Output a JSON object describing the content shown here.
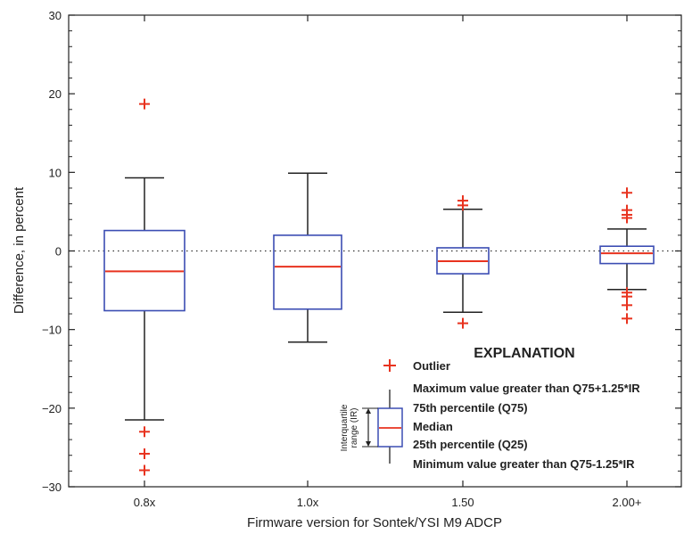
{
  "chart_data": {
    "type": "box",
    "xlabel": "Firmware version for Sontek/YSI M9 ADCP",
    "ylabel": "Difference, in percent",
    "ylim": [
      -30,
      30
    ],
    "yticks": [
      -30,
      -20,
      -10,
      0,
      10,
      20,
      30
    ],
    "ytick_labels": [
      "−30",
      "−20",
      "−10",
      "0",
      "10",
      "20",
      "30"
    ],
    "reference_line": {
      "y": 0,
      "style": "dotted"
    },
    "categories": [
      "0.8x",
      "1.0x",
      "1.50",
      "2.00+"
    ],
    "boxes": [
      {
        "category": "0.8x",
        "whisker_low": -21.5,
        "q25": -7.6,
        "median": -2.6,
        "q75": 2.6,
        "whisker_high": 9.3,
        "outliers": [
          18.7,
          -23.0,
          -25.8,
          -27.9
        ]
      },
      {
        "category": "1.0x",
        "whisker_low": -11.6,
        "q25": -7.4,
        "median": -2.0,
        "q75": 2.0,
        "whisker_high": 9.9,
        "outliers": []
      },
      {
        "category": "1.50",
        "whisker_low": -7.8,
        "q25": -2.9,
        "median": -1.3,
        "q75": 0.4,
        "whisker_high": 5.3,
        "outliers": [
          6.4,
          5.8,
          -9.2
        ]
      },
      {
        "category": "2.00+",
        "whisker_low": -4.9,
        "q25": -1.6,
        "median": -0.3,
        "q75": 0.6,
        "whisker_high": 2.8,
        "outliers": [
          7.4,
          5.2,
          4.6,
          4.2,
          -5.3,
          -5.8,
          -6.9,
          -8.6
        ]
      }
    ],
    "colors": {
      "box": "#3b4db3",
      "median": "#e8331f",
      "outlier": "#e8331f",
      "whisker": "#222222",
      "axis": "#222222"
    },
    "legend": {
      "title": "EXPLANATION",
      "placement": "bottom-right",
      "items": {
        "outlier": "Outlier",
        "max": "Maximum value greater than Q75+1.25*IR",
        "q75": "75th percentile (Q75)",
        "median": "Median",
        "q25": "25th percentile (Q25)",
        "min": "Minimum value greater than Q75-1.25*IR"
      },
      "iqr_label_line1": "Interquartile",
      "iqr_label_line2": "range (IR)"
    }
  }
}
